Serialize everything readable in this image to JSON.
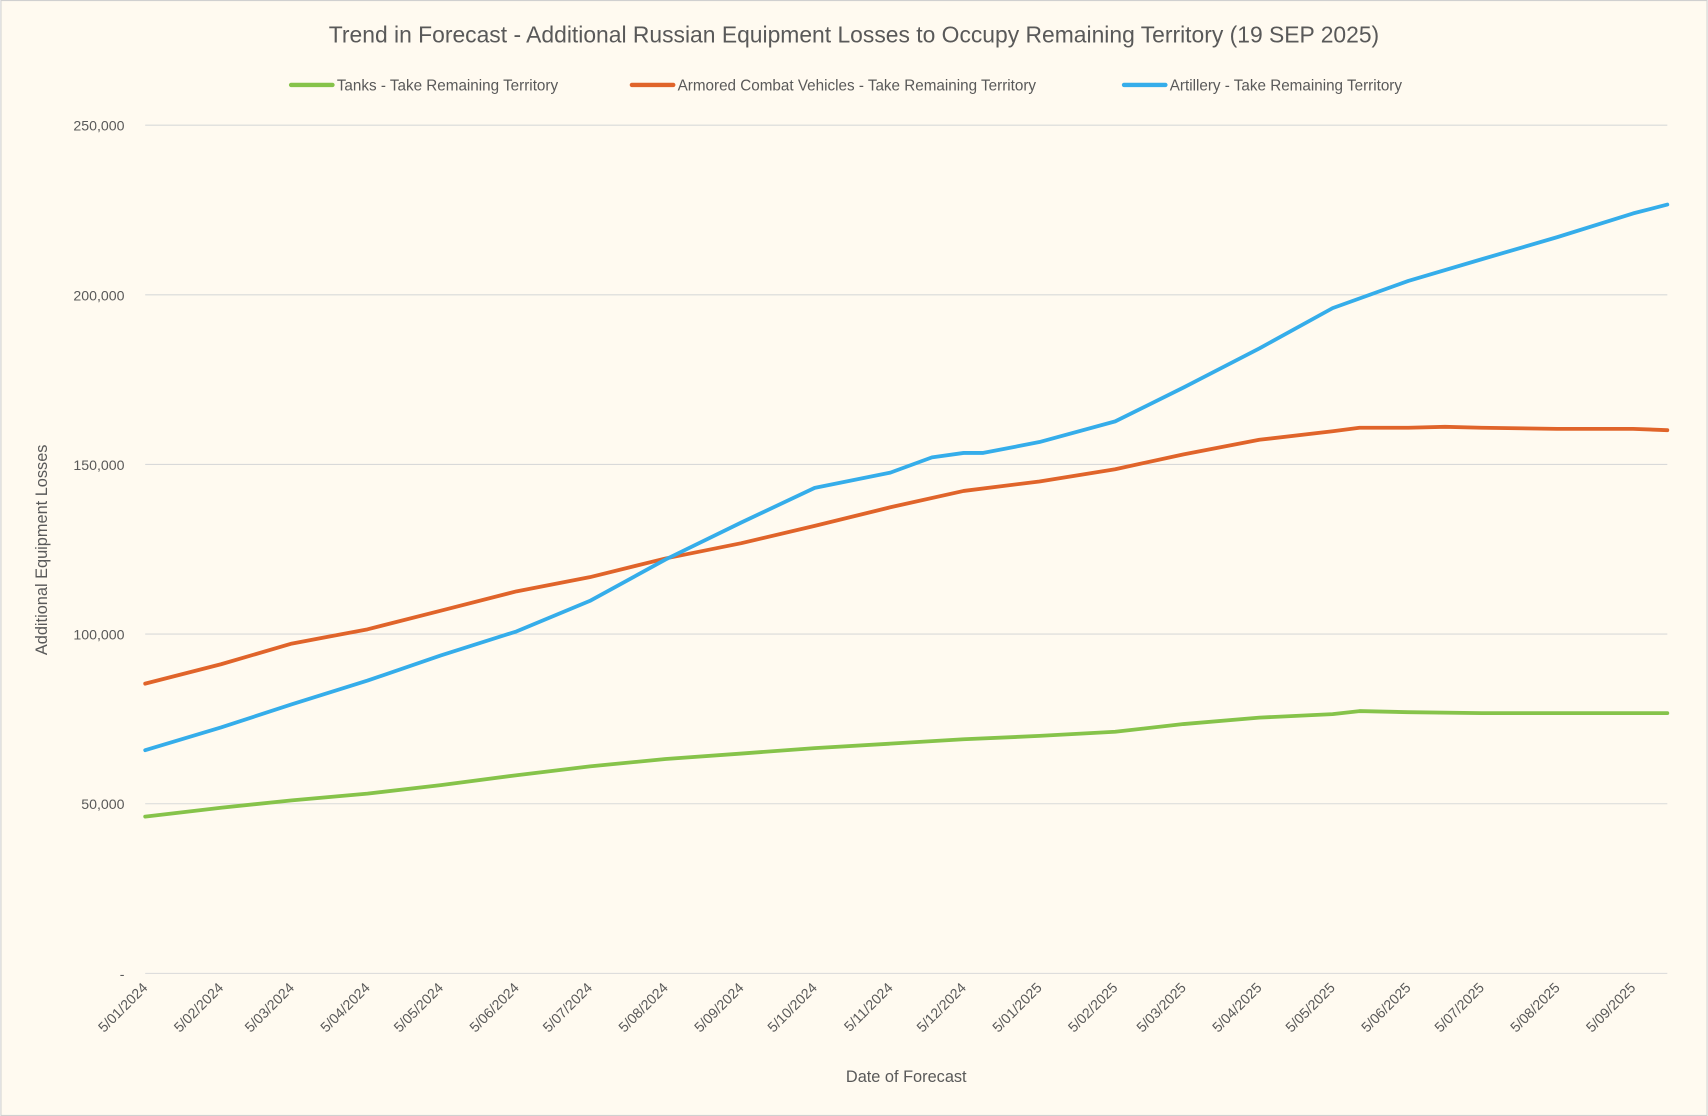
{
  "chart_data": {
    "type": "line",
    "title": "Trend in Forecast - Additional Russian Equipment Losses to Occupy Remaining Territory (19 SEP 2025)",
    "xlabel": "Date of Forecast",
    "ylabel": "Additional Equipment Losses",
    "ylim": [
      0,
      250000
    ],
    "yticks": [
      0,
      50000,
      100000,
      150000,
      200000,
      250000
    ],
    "ytick_labels": [
      "-",
      "50,000",
      "100,000",
      "150,000",
      "200,000",
      "250,000"
    ],
    "xlim": [
      "5/01/2024",
      "19/09/2025"
    ],
    "xtick_labels": [
      "5/01/2024",
      "5/02/2024",
      "5/03/2024",
      "5/04/2024",
      "5/05/2024",
      "5/06/2024",
      "5/07/2024",
      "5/08/2024",
      "5/09/2024",
      "5/10/2024",
      "5/11/2024",
      "5/12/2024",
      "5/01/2025",
      "5/02/2025",
      "5/03/2025",
      "5/04/2025",
      "5/05/2025",
      "5/06/2025",
      "5/07/2025",
      "5/08/2025",
      "5/09/2025"
    ],
    "grid": true,
    "legend_position": "top",
    "series": [
      {
        "name": "Tanks - Take Remaining Territory",
        "color": "#86C34A",
        "points": [
          [
            "5/01/2024",
            46200
          ],
          [
            "5/02/2024",
            48800
          ],
          [
            "5/03/2024",
            51000
          ],
          [
            "5/04/2024",
            53000
          ],
          [
            "5/05/2024",
            55500
          ],
          [
            "5/06/2024",
            58400
          ],
          [
            "5/07/2024",
            61000
          ],
          [
            "5/08/2024",
            63200
          ],
          [
            "5/09/2024",
            64800
          ],
          [
            "5/10/2024",
            66400
          ],
          [
            "5/11/2024",
            67700
          ],
          [
            "5/12/2024",
            69000
          ],
          [
            "5/01/2025",
            70000
          ],
          [
            "5/02/2025",
            71200
          ],
          [
            "5/03/2025",
            73500
          ],
          [
            "5/04/2025",
            75400
          ],
          [
            "5/05/2025",
            76400
          ],
          [
            "16/05/2025",
            77300
          ],
          [
            "5/06/2025",
            77000
          ],
          [
            "5/07/2025",
            76700
          ],
          [
            "5/08/2025",
            76700
          ],
          [
            "5/09/2025",
            76700
          ],
          [
            "19/09/2025",
            76700
          ]
        ]
      },
      {
        "name": "Armored Combat Vehicles - Take Remaining Territory",
        "color": "#E0642A",
        "points": [
          [
            "5/01/2024",
            85400
          ],
          [
            "5/02/2024",
            91100
          ],
          [
            "5/03/2024",
            97200
          ],
          [
            "5/04/2024",
            101400
          ],
          [
            "5/05/2024",
            106900
          ],
          [
            "5/06/2024",
            112600
          ],
          [
            "5/07/2024",
            116800
          ],
          [
            "5/08/2024",
            122300
          ],
          [
            "5/09/2024",
            126800
          ],
          [
            "5/10/2024",
            131900
          ],
          [
            "5/11/2024",
            137400
          ],
          [
            "5/12/2024",
            142200
          ],
          [
            "5/01/2025",
            145000
          ],
          [
            "5/02/2025",
            148600
          ],
          [
            "5/03/2025",
            153000
          ],
          [
            "5/04/2025",
            157300
          ],
          [
            "5/05/2025",
            159800
          ],
          [
            "16/05/2025",
            160800
          ],
          [
            "5/06/2025",
            160800
          ],
          [
            "20/06/2025",
            161100
          ],
          [
            "5/07/2025",
            160800
          ],
          [
            "5/08/2025",
            160500
          ],
          [
            "5/09/2025",
            160500
          ],
          [
            "19/09/2025",
            160100
          ]
        ]
      },
      {
        "name": "Artillery - Take Remaining Territory",
        "color": "#35ADEA",
        "points": [
          [
            "5/01/2024",
            65800
          ],
          [
            "5/02/2024",
            72500
          ],
          [
            "5/03/2024",
            79300
          ],
          [
            "5/04/2024",
            86300
          ],
          [
            "5/05/2024",
            93700
          ],
          [
            "5/06/2024",
            100800
          ],
          [
            "5/07/2024",
            109800
          ],
          [
            "5/08/2024",
            122000
          ],
          [
            "5/09/2024",
            132900
          ],
          [
            "5/10/2024",
            143100
          ],
          [
            "5/11/2024",
            147600
          ],
          [
            "22/11/2024",
            152100
          ],
          [
            "5/12/2024",
            153400
          ],
          [
            "13/12/2024",
            153400
          ],
          [
            "5/01/2025",
            156600
          ],
          [
            "5/02/2025",
            162700
          ],
          [
            "5/03/2025",
            172700
          ],
          [
            "5/04/2025",
            184200
          ],
          [
            "5/05/2025",
            196100
          ],
          [
            "5/06/2025",
            204100
          ],
          [
            "5/07/2025",
            210500
          ],
          [
            "5/08/2025",
            217000
          ],
          [
            "5/09/2025",
            224000
          ],
          [
            "19/09/2025",
            226600
          ]
        ]
      }
    ]
  }
}
